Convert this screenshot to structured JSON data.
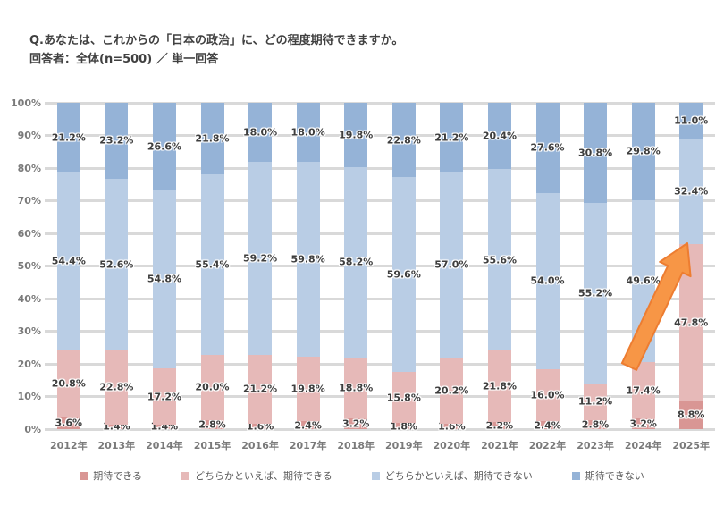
{
  "title": {
    "line1": "Q.あなたは、これからの「日本の政治」に、どの程度期待できますか。",
    "line2": "回答者：全体(n=500) ／ 単一回答"
  },
  "chart_data": {
    "type": "bar",
    "stacked": true,
    "orientation": "vertical",
    "title": "Q.あなたは、これからの「日本の政治」に、どの程度期待できますか。",
    "subtitle": "回答者：全体(n=500) ／ 単一回答",
    "categories": [
      "2012年",
      "2013年",
      "2014年",
      "2015年",
      "2016年",
      "2017年",
      "2018年",
      "2019年",
      "2020年",
      "2021年",
      "2022年",
      "2023年",
      "2024年",
      "2025年"
    ],
    "series": [
      {
        "name": "期待できる",
        "color": "#d99694",
        "values": [
          3.6,
          1.4,
          1.4,
          2.8,
          1.6,
          2.4,
          3.2,
          1.8,
          1.6,
          2.2,
          2.4,
          2.8,
          3.2,
          8.8
        ]
      },
      {
        "name": "どちらかといえば、期待できる",
        "color": "#e6b9b8",
        "values": [
          20.8,
          22.8,
          17.2,
          20.0,
          21.2,
          19.8,
          18.8,
          15.8,
          20.2,
          21.8,
          16.0,
          11.2,
          17.4,
          47.8
        ]
      },
      {
        "name": "どちらかといえば、期待できない",
        "color": "#b9cde5",
        "values": [
          54.4,
          52.6,
          54.8,
          55.4,
          59.2,
          59.8,
          58.2,
          59.6,
          57.0,
          55.6,
          54.0,
          55.2,
          49.6,
          32.4
        ]
      },
      {
        "name": "期待できない",
        "color": "#95b3d7",
        "values": [
          21.2,
          23.2,
          26.6,
          21.8,
          18.0,
          18.0,
          19.8,
          22.8,
          21.2,
          20.4,
          27.6,
          30.8,
          29.8,
          11.0
        ]
      }
    ],
    "ylim": [
      0,
      100
    ],
    "y_ticks": [
      "0%",
      "10%",
      "20%",
      "30%",
      "40%",
      "50%",
      "60%",
      "70%",
      "80%",
      "90%",
      "100%"
    ],
    "grid": true,
    "gridline_color": "#d9d9d9",
    "value_suffix": "%",
    "legend_position": "bottom",
    "annotation": {
      "type": "arrow",
      "color": "#f79646",
      "outline": "#ed7d31",
      "target": "2025年 どちらかといえば、期待できる の急増"
    }
  }
}
